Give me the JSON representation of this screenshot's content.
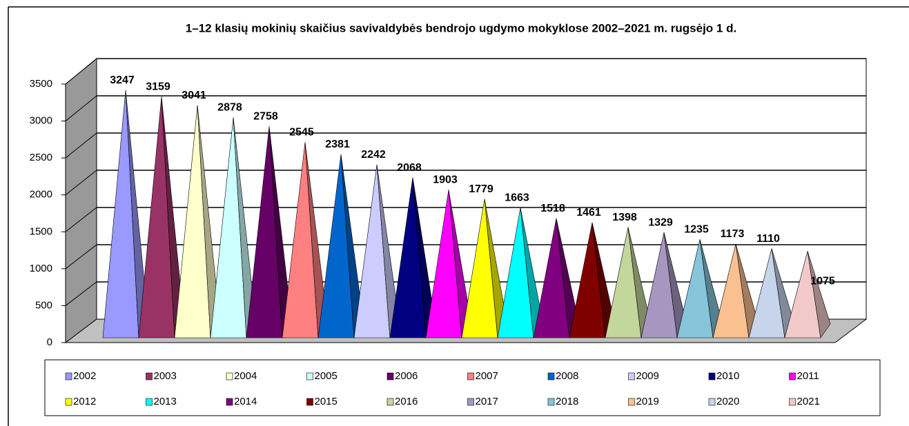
{
  "chart_data": {
    "type": "pyramid",
    "title": "1–12 klasių mokinių skaičius savivaldybės bendrojo ugdymo mokyklose 2002–2021 m. rugsėjo 1 d.",
    "ylim": [
      0,
      3500
    ],
    "yticks": [
      0,
      500,
      1000,
      1500,
      2000,
      2500,
      3000,
      3500
    ],
    "grid": true,
    "legend": "bottom",
    "series": [
      {
        "name": "2002",
        "color": "#9999ff",
        "values": [
          3247
        ]
      },
      {
        "name": "2003",
        "color": "#993366",
        "values": [
          3159
        ]
      },
      {
        "name": "2004",
        "color": "#ffffcc",
        "values": [
          3041
        ]
      },
      {
        "name": "2005",
        "color": "#ccffff",
        "values": [
          2878
        ]
      },
      {
        "name": "2006",
        "color": "#660066",
        "values": [
          2758
        ]
      },
      {
        "name": "2007",
        "color": "#ff8080",
        "values": [
          2545
        ]
      },
      {
        "name": "2008",
        "color": "#0066cc",
        "values": [
          2381
        ]
      },
      {
        "name": "2009",
        "color": "#ccccff",
        "values": [
          2242
        ]
      },
      {
        "name": "2010",
        "color": "#000080",
        "values": [
          2068
        ]
      },
      {
        "name": "2011",
        "color": "#ff00ff",
        "values": [
          1903
        ]
      },
      {
        "name": "2012",
        "color": "#ffff00",
        "values": [
          1779
        ]
      },
      {
        "name": "2013",
        "color": "#00ffff",
        "values": [
          1663
        ]
      },
      {
        "name": "2014",
        "color": "#800080",
        "values": [
          1518
        ]
      },
      {
        "name": "2015",
        "color": "#800000",
        "values": [
          1461
        ]
      },
      {
        "name": "2016",
        "color": "#c3d69b",
        "values": [
          1398
        ]
      },
      {
        "name": "2017",
        "color": "#a797c0",
        "values": [
          1329
        ]
      },
      {
        "name": "2018",
        "color": "#86c5da",
        "values": [
          1235
        ]
      },
      {
        "name": "2019",
        "color": "#fac090",
        "values": [
          1173
        ]
      },
      {
        "name": "2020",
        "color": "#c6d4ec",
        "values": [
          1110
        ]
      },
      {
        "name": "2021",
        "color": "#f2c9c9",
        "values": [
          1075
        ]
      }
    ]
  }
}
